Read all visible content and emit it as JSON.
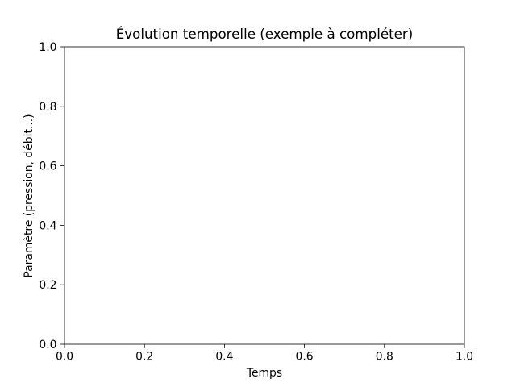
{
  "chart_data": {
    "type": "line",
    "title": "Évolution temporelle (exemple à compléter)",
    "xlabel": "Temps",
    "ylabel": "Paramètre (pression, débit...)",
    "xlim": [
      0,
      1
    ],
    "ylim": [
      0,
      1
    ],
    "xticks": [
      0.0,
      0.2,
      0.4,
      0.6,
      0.8,
      1.0
    ],
    "yticks": [
      0.0,
      0.2,
      0.4,
      0.6,
      0.8,
      1.0
    ],
    "xtick_labels": [
      "0.0",
      "0.2",
      "0.4",
      "0.6",
      "0.8",
      "1.0"
    ],
    "ytick_labels": [
      "0.0",
      "0.2",
      "0.4",
      "0.6",
      "0.8",
      "1.0"
    ],
    "series": [],
    "grid": false,
    "legend": "none"
  },
  "colors": {
    "background": "#ffffff",
    "axes": "#000000",
    "text": "#000000"
  }
}
